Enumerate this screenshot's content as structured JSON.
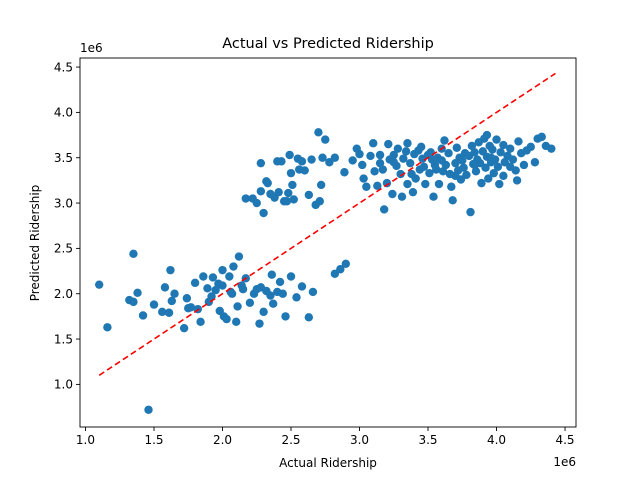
{
  "chart_data": {
    "type": "scatter",
    "title": "Actual vs Predicted Ridership",
    "xlabel": "Actual Ridership",
    "ylabel": "Predicted Ridership",
    "x_scale_label": "1e6",
    "y_scale_label": "1e6",
    "xlim": [
      0.96,
      4.58
    ],
    "ylim": [
      0.53,
      4.6
    ],
    "x_ticks": [
      1.0,
      1.5,
      2.0,
      2.5,
      3.0,
      3.5,
      4.0,
      4.5
    ],
    "y_ticks": [
      1.0,
      1.5,
      2.0,
      2.5,
      3.0,
      3.5,
      4.0,
      4.5
    ],
    "x_tick_labels": [
      "1.0",
      "1.5",
      "2.0",
      "2.5",
      "3.0",
      "3.5",
      "4.0",
      "4.5"
    ],
    "y_tick_labels": [
      "1.0",
      "1.5",
      "2.0",
      "2.5",
      "3.0",
      "3.5",
      "4.0",
      "4.5"
    ],
    "grid": false,
    "legend": "none",
    "point_color": "#1f77b4",
    "reference_line": {
      "from": [
        1.1,
        1.1
      ],
      "to": [
        4.43,
        4.43
      ],
      "color": "#ff0000",
      "style": "dashed"
    },
    "points": [
      [
        1.1,
        2.1
      ],
      [
        1.16,
        1.63
      ],
      [
        1.32,
        1.93
      ],
      [
        1.35,
        1.91
      ],
      [
        1.35,
        2.44
      ],
      [
        1.38,
        2.01
      ],
      [
        1.42,
        1.76
      ],
      [
        1.46,
        0.72
      ],
      [
        1.5,
        1.88
      ],
      [
        1.56,
        1.8
      ],
      [
        1.58,
        2.07
      ],
      [
        1.61,
        1.79
      ],
      [
        1.62,
        2.26
      ],
      [
        1.63,
        1.92
      ],
      [
        1.65,
        2.0
      ],
      [
        1.72,
        1.62
      ],
      [
        1.74,
        1.95
      ],
      [
        1.75,
        1.84
      ],
      [
        1.77,
        1.85
      ],
      [
        1.8,
        2.12
      ],
      [
        1.82,
        1.83
      ],
      [
        1.84,
        1.69
      ],
      [
        1.86,
        2.19
      ],
      [
        1.89,
        2.06
      ],
      [
        1.9,
        1.91
      ],
      [
        1.92,
        1.97
      ],
      [
        1.93,
        2.18
      ],
      [
        1.95,
        2.04
      ],
      [
        1.97,
        2.11
      ],
      [
        1.98,
        1.81
      ],
      [
        2.0,
        2.26
      ],
      [
        2.0,
        2.09
      ],
      [
        2.01,
        1.75
      ],
      [
        2.03,
        1.72
      ],
      [
        2.05,
        2.19
      ],
      [
        2.06,
        2.02
      ],
      [
        2.07,
        2.0
      ],
      [
        2.08,
        2.3
      ],
      [
        2.1,
        1.69
      ],
      [
        2.11,
        1.86
      ],
      [
        2.12,
        2.41
      ],
      [
        2.14,
        2.09
      ],
      [
        2.15,
        2.05
      ],
      [
        2.17,
        2.17
      ],
      [
        2.2,
        1.9
      ],
      [
        2.23,
        2.0
      ],
      [
        2.25,
        2.05
      ],
      [
        2.27,
        1.67
      ],
      [
        2.28,
        2.07
      ],
      [
        2.3,
        1.8
      ],
      [
        2.32,
        2.03
      ],
      [
        2.35,
        1.98
      ],
      [
        2.36,
        2.21
      ],
      [
        2.37,
        1.89
      ],
      [
        2.4,
        2.02
      ],
      [
        2.42,
        2.13
      ],
      [
        2.44,
        2.0
      ],
      [
        2.46,
        1.75
      ],
      [
        2.5,
        2.19
      ],
      [
        2.54,
        1.96
      ],
      [
        2.58,
        2.08
      ],
      [
        2.63,
        1.74
      ],
      [
        2.66,
        2.02
      ],
      [
        2.86,
        2.27
      ],
      [
        2.9,
        2.33
      ],
      [
        2.82,
        2.22
      ],
      [
        2.17,
        3.05
      ],
      [
        2.22,
        3.05
      ],
      [
        2.25,
        3.0
      ],
      [
        2.28,
        3.44
      ],
      [
        2.28,
        3.13
      ],
      [
        2.3,
        2.89
      ],
      [
        2.32,
        3.24
      ],
      [
        2.33,
        3.22
      ],
      [
        2.35,
        3.1
      ],
      [
        2.38,
        3.06
      ],
      [
        2.4,
        3.46
      ],
      [
        2.41,
        3.12
      ],
      [
        2.43,
        3.46
      ],
      [
        2.45,
        3.02
      ],
      [
        2.47,
        3.02
      ],
      [
        2.48,
        3.11
      ],
      [
        2.49,
        3.53
      ],
      [
        2.5,
        3.33
      ],
      [
        2.51,
        3.2
      ],
      [
        2.52,
        3.04
      ],
      [
        2.55,
        3.49
      ],
      [
        2.56,
        3.37
      ],
      [
        2.58,
        3.46
      ],
      [
        2.6,
        3.36
      ],
      [
        2.63,
        3.09
      ],
      [
        2.65,
        3.48
      ],
      [
        2.68,
        2.98
      ],
      [
        2.7,
        3.78
      ],
      [
        2.71,
        3.02
      ],
      [
        2.73,
        3.5
      ],
      [
        2.72,
        3.2
      ],
      [
        2.75,
        3.7
      ],
      [
        2.78,
        3.45
      ],
      [
        2.82,
        3.5
      ],
      [
        2.89,
        3.34
      ],
      [
        2.95,
        3.47
      ],
      [
        2.98,
        3.6
      ],
      [
        3.0,
        3.54
      ],
      [
        3.03,
        3.27
      ],
      [
        3.05,
        3.18
      ],
      [
        3.08,
        3.52
      ],
      [
        3.1,
        3.66
      ],
      [
        3.11,
        3.35
      ],
      [
        3.13,
        3.19
      ],
      [
        3.15,
        3.44
      ],
      [
        3.17,
        3.37
      ],
      [
        3.18,
        2.93
      ],
      [
        3.2,
        3.22
      ],
      [
        3.21,
        3.65
      ],
      [
        3.22,
        3.48
      ],
      [
        3.24,
        3.1
      ],
      [
        3.25,
        3.53
      ],
      [
        3.27,
        3.41
      ],
      [
        3.28,
        3.6
      ],
      [
        3.3,
        3.32
      ],
      [
        3.31,
        3.07
      ],
      [
        3.32,
        3.49
      ],
      [
        3.34,
        3.57
      ],
      [
        3.35,
        3.21
      ],
      [
        3.37,
        3.44
      ],
      [
        3.38,
        3.32
      ],
      [
        3.39,
        3.12
      ],
      [
        3.4,
        3.54
      ],
      [
        3.41,
        3.27
      ],
      [
        3.43,
        3.58
      ],
      [
        3.44,
        3.37
      ],
      [
        3.46,
        3.49
      ],
      [
        3.47,
        3.4
      ],
      [
        3.48,
        3.21
      ],
      [
        3.5,
        3.53
      ],
      [
        3.51,
        3.33
      ],
      [
        3.52,
        3.56
      ],
      [
        3.54,
        3.07
      ],
      [
        3.55,
        3.42
      ],
      [
        3.56,
        3.37
      ],
      [
        3.57,
        3.5
      ],
      [
        3.58,
        3.21
      ],
      [
        3.6,
        3.47
      ],
      [
        3.61,
        3.35
      ],
      [
        3.62,
        3.69
      ],
      [
        3.63,
        3.42
      ],
      [
        3.65,
        3.55
      ],
      [
        3.66,
        3.32
      ],
      [
        3.67,
        3.18
      ],
      [
        3.68,
        3.03
      ],
      [
        3.7,
        3.44
      ],
      [
        3.71,
        3.61
      ],
      [
        3.72,
        3.36
      ],
      [
        3.73,
        3.5
      ],
      [
        3.74,
        3.26
      ],
      [
        3.75,
        3.47
      ],
      [
        3.76,
        3.39
      ],
      [
        3.77,
        3.55
      ],
      [
        3.78,
        3.31
      ],
      [
        3.8,
        3.52
      ],
      [
        3.81,
        2.9
      ],
      [
        3.82,
        3.63
      ],
      [
        3.83,
        3.43
      ],
      [
        3.84,
        3.56
      ],
      [
        3.85,
        3.35
      ],
      [
        3.86,
        3.48
      ],
      [
        3.87,
        3.67
      ],
      [
        3.88,
        3.44
      ],
      [
        3.89,
        3.22
      ],
      [
        3.9,
        3.57
      ],
      [
        3.91,
        3.71
      ],
      [
        3.92,
        3.39
      ],
      [
        3.93,
        3.51
      ],
      [
        3.94,
        3.27
      ],
      [
        3.95,
        3.63
      ],
      [
        3.96,
        3.45
      ],
      [
        3.97,
        3.59
      ],
      [
        3.98,
        3.33
      ],
      [
        3.99,
        3.48
      ],
      [
        4.0,
        3.7
      ],
      [
        4.01,
        3.4
      ],
      [
        4.02,
        3.21
      ],
      [
        4.03,
        3.56
      ],
      [
        4.05,
        3.64
      ],
      [
        4.06,
        3.45
      ],
      [
        4.08,
        3.52
      ],
      [
        4.1,
        3.6
      ],
      [
        4.12,
        3.48
      ],
      [
        4.14,
        3.36
      ],
      [
        4.15,
        3.25
      ],
      [
        4.16,
        3.68
      ],
      [
        4.18,
        3.55
      ],
      [
        4.2,
        3.42
      ],
      [
        4.22,
        3.58
      ],
      [
        4.25,
        3.62
      ],
      [
        4.28,
        3.45
      ],
      [
        4.3,
        3.71
      ],
      [
        4.33,
        3.73
      ],
      [
        4.36,
        3.63
      ],
      [
        4.4,
        3.6
      ],
      [
        4.05,
        3.3
      ],
      [
        3.93,
        3.75
      ],
      [
        3.45,
        3.62
      ],
      [
        3.53,
        3.48
      ],
      [
        3.25,
        3.45
      ],
      [
        3.15,
        3.53
      ],
      [
        3.02,
        3.42
      ],
      [
        3.35,
        3.66
      ],
      [
        3.6,
        3.6
      ],
      [
        3.7,
        3.3
      ],
      [
        3.84,
        3.42
      ],
      [
        3.96,
        3.5
      ],
      [
        4.1,
        3.4
      ]
    ]
  }
}
